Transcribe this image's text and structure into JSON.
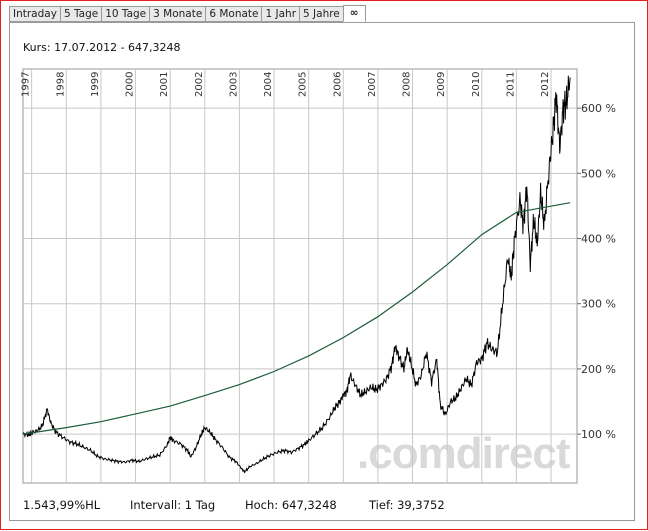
{
  "tabs": [
    {
      "label": "Intraday",
      "active": false
    },
    {
      "label": "5 Tage",
      "active": false
    },
    {
      "label": "10 Tage",
      "active": false
    },
    {
      "label": "3 Monate",
      "active": false
    },
    {
      "label": "6 Monate",
      "active": false
    },
    {
      "label": "1 Jahr",
      "active": false
    },
    {
      "label": "5 Jahre",
      "active": false
    },
    {
      "label": "∞",
      "active": true
    }
  ],
  "header": {
    "kurs": "Kurs: 17.07.2012 - 647,3248"
  },
  "watermark": ".comdirect",
  "footer": {
    "hl": "1.543,99%HL",
    "intervall": "Intervall: 1 Tag",
    "hoch": "Hoch: 647,3248",
    "tief": "Tief: 39,3752"
  },
  "colors": {
    "border": "#e0211f",
    "price": "#000000",
    "trend": "#1b5e3a",
    "grid": "#c8c8c8"
  },
  "chart_data": {
    "type": "line",
    "x_tick_labels": [
      "1997",
      "1998",
      "1999",
      "2000",
      "2001",
      "2002",
      "2003",
      "2004",
      "2005",
      "2006",
      "2007",
      "2008",
      "2009",
      "2010",
      "2011",
      "2012"
    ],
    "y_tick_labels": [
      "100 %",
      "200 %",
      "300 %",
      "400 %",
      "500 %",
      "600 %"
    ],
    "y_ticks": [
      100,
      200,
      300,
      400,
      500,
      600
    ],
    "ylim": [
      25,
      660
    ],
    "xlim": [
      1996.75,
      2012.75
    ],
    "grid": true,
    "series": [
      {
        "role": "price",
        "points": [
          [
            1996.75,
            100
          ],
          [
            1996.9,
            99
          ],
          [
            1997.0,
            102
          ],
          [
            1997.15,
            105
          ],
          [
            1997.3,
            112
          ],
          [
            1997.45,
            138
          ],
          [
            1997.55,
            118
          ],
          [
            1997.7,
            103
          ],
          [
            1997.9,
            95
          ],
          [
            1998.1,
            88
          ],
          [
            1998.3,
            85
          ],
          [
            1998.5,
            80
          ],
          [
            1998.7,
            75
          ],
          [
            1998.9,
            66
          ],
          [
            1999.1,
            62
          ],
          [
            1999.3,
            60
          ],
          [
            1999.5,
            58
          ],
          [
            1999.7,
            57
          ],
          [
            1999.9,
            60
          ],
          [
            2000.1,
            58
          ],
          [
            2000.3,
            62
          ],
          [
            2000.5,
            65
          ],
          [
            2000.7,
            68
          ],
          [
            2000.9,
            82
          ],
          [
            2001.0,
            95
          ],
          [
            2001.1,
            90
          ],
          [
            2001.3,
            85
          ],
          [
            2001.5,
            75
          ],
          [
            2001.6,
            65
          ],
          [
            2001.75,
            80
          ],
          [
            2001.9,
            100
          ],
          [
            2002.0,
            110
          ],
          [
            2002.15,
            103
          ],
          [
            2002.3,
            92
          ],
          [
            2002.5,
            80
          ],
          [
            2002.7,
            65
          ],
          [
            2002.9,
            58
          ],
          [
            2003.05,
            48
          ],
          [
            2003.15,
            42
          ],
          [
            2003.3,
            50
          ],
          [
            2003.5,
            55
          ],
          [
            2003.7,
            62
          ],
          [
            2003.9,
            68
          ],
          [
            2004.1,
            72
          ],
          [
            2004.3,
            75
          ],
          [
            2004.5,
            72
          ],
          [
            2004.7,
            78
          ],
          [
            2004.9,
            85
          ],
          [
            2005.0,
            90
          ],
          [
            2005.2,
            100
          ],
          [
            2005.4,
            110
          ],
          [
            2005.6,
            125
          ],
          [
            2005.75,
            140
          ],
          [
            2005.9,
            150
          ],
          [
            2006.0,
            160
          ],
          [
            2006.1,
            165
          ],
          [
            2006.2,
            190
          ],
          [
            2006.35,
            175
          ],
          [
            2006.5,
            160
          ],
          [
            2006.65,
            165
          ],
          [
            2006.8,
            172
          ],
          [
            2006.95,
            168
          ],
          [
            2007.1,
            175
          ],
          [
            2007.25,
            185
          ],
          [
            2007.4,
            205
          ],
          [
            2007.5,
            235
          ],
          [
            2007.6,
            220
          ],
          [
            2007.75,
            200
          ],
          [
            2007.85,
            230
          ],
          [
            2007.95,
            210
          ],
          [
            2008.1,
            175
          ],
          [
            2008.25,
            190
          ],
          [
            2008.4,
            225
          ],
          [
            2008.55,
            180
          ],
          [
            2008.7,
            215
          ],
          [
            2008.8,
            145
          ],
          [
            2008.95,
            130
          ],
          [
            2009.1,
            150
          ],
          [
            2009.25,
            155
          ],
          [
            2009.4,
            170
          ],
          [
            2009.55,
            185
          ],
          [
            2009.7,
            175
          ],
          [
            2009.85,
            210
          ],
          [
            2010.0,
            215
          ],
          [
            2010.15,
            240
          ],
          [
            2010.3,
            230
          ],
          [
            2010.45,
            225
          ],
          [
            2010.6,
            300
          ],
          [
            2010.75,
            370
          ],
          [
            2010.85,
            340
          ],
          [
            2010.95,
            400
          ],
          [
            2011.1,
            460
          ],
          [
            2011.2,
            420
          ],
          [
            2011.3,
            480
          ],
          [
            2011.4,
            360
          ],
          [
            2011.5,
            430
          ],
          [
            2011.6,
            390
          ],
          [
            2011.7,
            470
          ],
          [
            2011.8,
            420
          ],
          [
            2011.95,
            510
          ],
          [
            2012.05,
            560
          ],
          [
            2012.15,
            620
          ],
          [
            2012.25,
            540
          ],
          [
            2012.35,
            600
          ],
          [
            2012.45,
            610
          ],
          [
            2012.55,
            647
          ]
        ]
      },
      {
        "role": "trend",
        "points": [
          [
            1996.75,
            100
          ],
          [
            1998,
            110
          ],
          [
            1999,
            119
          ],
          [
            2000,
            131
          ],
          [
            2001,
            143
          ],
          [
            2002,
            159
          ],
          [
            2003,
            176
          ],
          [
            2004,
            196
          ],
          [
            2005,
            220
          ],
          [
            2006,
            248
          ],
          [
            2007,
            280
          ],
          [
            2008,
            318
          ],
          [
            2009,
            360
          ],
          [
            2010,
            406
          ],
          [
            2011,
            440
          ],
          [
            2012.55,
            455
          ]
        ]
      }
    ]
  }
}
